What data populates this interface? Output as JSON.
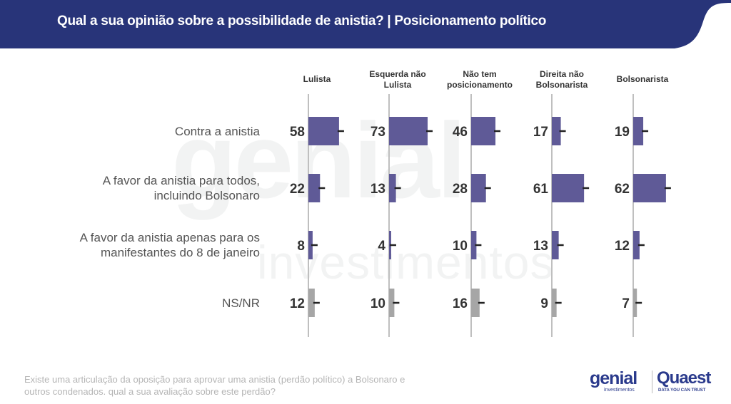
{
  "header": {
    "title": "Qual a sua opinião sobre a possibilidade de anistia? | Posicionamento político",
    "bg_color": "#283479"
  },
  "watermark": {
    "main": "genial",
    "sub": "investimentos"
  },
  "colors": {
    "primary_bar": "#5f5a97",
    "ns_bar": "#a6a6a6",
    "axis": "#bfbfbf",
    "marker": "#222222"
  },
  "chart_data": {
    "type": "bar",
    "orientation": "horizontal",
    "title": "Qual a sua opinião sobre a possibilidade de anistia? | Posicionamento político",
    "groups": [
      "Lulista",
      "Esquerda não Lulista",
      "Não tem posicionamento",
      "Direita não Bolsonarista",
      "Bolsonarista"
    ],
    "group_labels": [
      [
        "Lulista"
      ],
      [
        "Esquerda não",
        "Lulista"
      ],
      [
        "Não tem",
        "posicionamento"
      ],
      [
        "Direita não",
        "Bolsonarista"
      ],
      [
        "Bolsonarista"
      ]
    ],
    "categories": [
      "Contra a anistia",
      "A favor da anistia para todos, incluindo Bolsonaro",
      "A favor da anistia apenas para os manifestantes do 8 de janeiro",
      "NS/NR"
    ],
    "category_labels": [
      [
        "Contra a anistia"
      ],
      [
        "A favor da anistia para todos,",
        "incluindo Bolsonaro"
      ],
      [
        "A favor da anistia apenas para os",
        "manifestantes do 8 de janeiro"
      ],
      [
        "NS/NR"
      ]
    ],
    "series": [
      {
        "name": "Lulista",
        "values": [
          58,
          22,
          8,
          12
        ]
      },
      {
        "name": "Esquerda não Lulista",
        "values": [
          73,
          13,
          4,
          10
        ]
      },
      {
        "name": "Não tem posicionamento",
        "values": [
          46,
          28,
          10,
          16
        ]
      },
      {
        "name": "Direita não Bolsonarista",
        "values": [
          17,
          61,
          13,
          9
        ]
      },
      {
        "name": "Bolsonarista",
        "values": [
          19,
          62,
          12,
          7
        ]
      }
    ],
    "units": "%",
    "xlim": [
      0,
      100
    ],
    "grid": false,
    "legend": "none"
  },
  "footnote": {
    "line1": "Existe uma articulação da oposição para aprovar uma anistia (perdão político) a Bolsonaro e",
    "line2": "outros condenados. qual a sua avaliação sobre este perdão?"
  },
  "logos": {
    "genial": "genial",
    "genial_sub": "investimentos",
    "quaest": "Quaest",
    "quaest_sub": "DATA YOU CAN TRUST"
  }
}
